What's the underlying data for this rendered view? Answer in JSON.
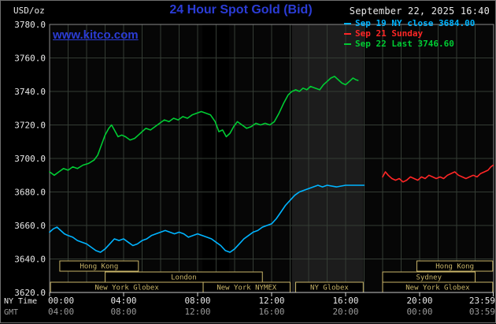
{
  "header": {
    "unit_label": "USD/oz",
    "title": "24 Hour Spot Gold (Bid)",
    "datetime": "September 22, 2025 16:40",
    "watermark": "www.kitco.com"
  },
  "colors": {
    "title": "#2b3cd6",
    "watermark": "#2b3cd6",
    "datetime": "#e8e8e8",
    "axis_text": "#e8e8e8",
    "gmt_text": "#9a9a9a",
    "grid": "#343c34",
    "plot_border": "#8a8a8a",
    "bottom_axis": "#c8c8c8",
    "tick": "#dddddd",
    "plot_bg": "#060606",
    "session": "#c9b569",
    "series_sep19": "#00b4ff",
    "series_sep21": "#ff2626",
    "series_sep22": "#00cc33"
  },
  "legend": [
    {
      "label": "Sep 19 NY close 3684.00",
      "color": "#00b4ff"
    },
    {
      "label": "Sep 21 Sunday",
      "color": "#ff2626"
    },
    {
      "label": "Sep 22 Last 3746.60",
      "color": "#00cc33"
    }
  ],
  "axes": {
    "ny_time_label": "NY Time",
    "gmt_label": "GMT",
    "y_ticks": [
      {
        "v": 3780,
        "label": "3780.0"
      },
      {
        "v": 3760,
        "label": "3760.0"
      },
      {
        "v": 3740,
        "label": "3740.0"
      },
      {
        "v": 3720,
        "label": "3720.0"
      },
      {
        "v": 3700,
        "label": "3700.0"
      },
      {
        "v": 3680,
        "label": "3680.0"
      },
      {
        "v": 3660,
        "label": "3660.0"
      },
      {
        "v": 3640,
        "label": "3640.0"
      },
      {
        "v": 3620,
        "label": "3620.0"
      }
    ],
    "x_ticks": [
      {
        "h": 0,
        "ny": "00:00",
        "gmt": "04:00"
      },
      {
        "h": 4,
        "ny": "04:00",
        "gmt": "08:00"
      },
      {
        "h": 8,
        "ny": "08:00",
        "gmt": "12:00"
      },
      {
        "h": 12,
        "ny": "12:00",
        "gmt": "16:00"
      },
      {
        "h": 16,
        "ny": "16:00",
        "gmt": "20:00"
      },
      {
        "h": 20,
        "ny": "20:00",
        "gmt": "00:00"
      },
      {
        "h": 23.983,
        "ny": "23:59",
        "gmt": "03:59"
      }
    ]
  },
  "chart_data": {
    "type": "line",
    "title": "24 Hour Spot Gold (Bid)",
    "ylabel": "USD/oz",
    "x_unit": "NY time (hours)",
    "xlim": [
      0,
      24
    ],
    "ylim": [
      3620,
      3780
    ],
    "grid": true,
    "x_grid_step_hours": 1,
    "y_grid_step": 20,
    "bands": [
      {
        "start": 8.25,
        "end": 9.7,
        "color": "#000000"
      },
      {
        "start": 13.1,
        "end": 16.95,
        "color": "#1c1c1c"
      }
    ],
    "series": [
      {
        "name": "Sep 19 NY close",
        "close": 3684.0,
        "color": "#00b4ff",
        "points": [
          [
            0,
            3656
          ],
          [
            0.2,
            3658
          ],
          [
            0.4,
            3659
          ],
          [
            0.6,
            3657
          ],
          [
            0.8,
            3655
          ],
          [
            1,
            3654
          ],
          [
            1.25,
            3653
          ],
          [
            1.5,
            3651
          ],
          [
            1.75,
            3650
          ],
          [
            2,
            3649
          ],
          [
            2.25,
            3647
          ],
          [
            2.5,
            3645
          ],
          [
            2.75,
            3644
          ],
          [
            3,
            3646
          ],
          [
            3.25,
            3649
          ],
          [
            3.5,
            3652
          ],
          [
            3.75,
            3651
          ],
          [
            4,
            3652
          ],
          [
            4.25,
            3650
          ],
          [
            4.5,
            3648
          ],
          [
            4.75,
            3649
          ],
          [
            5,
            3651
          ],
          [
            5.25,
            3652
          ],
          [
            5.5,
            3654
          ],
          [
            5.75,
            3655
          ],
          [
            6,
            3656
          ],
          [
            6.25,
            3657
          ],
          [
            6.5,
            3656
          ],
          [
            6.75,
            3655
          ],
          [
            7,
            3656
          ],
          [
            7.25,
            3655
          ],
          [
            7.5,
            3653
          ],
          [
            7.75,
            3654
          ],
          [
            8,
            3655
          ],
          [
            8.25,
            3654
          ],
          [
            8.5,
            3653
          ],
          [
            8.75,
            3652
          ],
          [
            9,
            3650
          ],
          [
            9.25,
            3648
          ],
          [
            9.5,
            3645
          ],
          [
            9.75,
            3644
          ],
          [
            10,
            3646
          ],
          [
            10.25,
            3649
          ],
          [
            10.5,
            3652
          ],
          [
            10.75,
            3654
          ],
          [
            11,
            3656
          ],
          [
            11.25,
            3657
          ],
          [
            11.5,
            3659
          ],
          [
            11.75,
            3660
          ],
          [
            12,
            3661
          ],
          [
            12.25,
            3664
          ],
          [
            12.5,
            3668
          ],
          [
            12.75,
            3672
          ],
          [
            13,
            3675
          ],
          [
            13.25,
            3678
          ],
          [
            13.5,
            3680
          ],
          [
            13.75,
            3681
          ],
          [
            14,
            3682
          ],
          [
            14.25,
            3683
          ],
          [
            14.5,
            3684
          ],
          [
            14.75,
            3683
          ],
          [
            15,
            3684
          ],
          [
            15.5,
            3683
          ],
          [
            16,
            3684
          ],
          [
            16.5,
            3684
          ],
          [
            17,
            3684
          ]
        ]
      },
      {
        "name": "Sep 21 Sunday",
        "color": "#ff2626",
        "points": [
          [
            18,
            3689
          ],
          [
            18.15,
            3692
          ],
          [
            18.3,
            3690
          ],
          [
            18.5,
            3688
          ],
          [
            18.7,
            3687
          ],
          [
            18.9,
            3688
          ],
          [
            19.1,
            3686
          ],
          [
            19.3,
            3687
          ],
          [
            19.5,
            3689
          ],
          [
            19.7,
            3688
          ],
          [
            19.9,
            3687
          ],
          [
            20.1,
            3689
          ],
          [
            20.3,
            3688
          ],
          [
            20.5,
            3690
          ],
          [
            20.7,
            3689
          ],
          [
            20.9,
            3688
          ],
          [
            21.1,
            3689
          ],
          [
            21.3,
            3688
          ],
          [
            21.5,
            3690
          ],
          [
            21.7,
            3691
          ],
          [
            21.9,
            3692
          ],
          [
            22.1,
            3690
          ],
          [
            22.3,
            3689
          ],
          [
            22.5,
            3688
          ],
          [
            22.7,
            3689
          ],
          [
            22.9,
            3690
          ],
          [
            23.1,
            3689
          ],
          [
            23.3,
            3691
          ],
          [
            23.5,
            3692
          ],
          [
            23.7,
            3693
          ],
          [
            23.85,
            3695
          ],
          [
            23.98,
            3696
          ]
        ]
      },
      {
        "name": "Sep 22 Last",
        "last": 3746.6,
        "color": "#00cc33",
        "points": [
          [
            0,
            3692
          ],
          [
            0.25,
            3690
          ],
          [
            0.5,
            3692
          ],
          [
            0.75,
            3694
          ],
          [
            1,
            3693
          ],
          [
            1.25,
            3695
          ],
          [
            1.5,
            3694
          ],
          [
            1.8,
            3696
          ],
          [
            2.1,
            3697
          ],
          [
            2.4,
            3699
          ],
          [
            2.6,
            3702
          ],
          [
            2.8,
            3708
          ],
          [
            3,
            3714
          ],
          [
            3.2,
            3718
          ],
          [
            3.35,
            3720
          ],
          [
            3.5,
            3717
          ],
          [
            3.7,
            3713
          ],
          [
            3.9,
            3714
          ],
          [
            4.1,
            3713
          ],
          [
            4.35,
            3711
          ],
          [
            4.6,
            3712
          ],
          [
            4.8,
            3714
          ],
          [
            5,
            3716
          ],
          [
            5.2,
            3718
          ],
          [
            5.45,
            3717
          ],
          [
            5.7,
            3719
          ],
          [
            5.95,
            3721
          ],
          [
            6.2,
            3723
          ],
          [
            6.45,
            3722
          ],
          [
            6.7,
            3724
          ],
          [
            6.95,
            3723
          ],
          [
            7.2,
            3725
          ],
          [
            7.45,
            3724
          ],
          [
            7.7,
            3726
          ],
          [
            7.95,
            3727
          ],
          [
            8.2,
            3728
          ],
          [
            8.45,
            3727
          ],
          [
            8.7,
            3726
          ],
          [
            8.95,
            3722
          ],
          [
            9.15,
            3716
          ],
          [
            9.35,
            3717
          ],
          [
            9.55,
            3713
          ],
          [
            9.75,
            3715
          ],
          [
            9.95,
            3719
          ],
          [
            10.15,
            3722
          ],
          [
            10.4,
            3720
          ],
          [
            10.65,
            3718
          ],
          [
            10.9,
            3719
          ],
          [
            11.15,
            3721
          ],
          [
            11.4,
            3720
          ],
          [
            11.65,
            3721
          ],
          [
            11.9,
            3720
          ],
          [
            12.15,
            3722
          ],
          [
            12.4,
            3727
          ],
          [
            12.65,
            3733
          ],
          [
            12.9,
            3738
          ],
          [
            13.1,
            3740
          ],
          [
            13.3,
            3741
          ],
          [
            13.5,
            3740
          ],
          [
            13.7,
            3742
          ],
          [
            13.9,
            3741
          ],
          [
            14.1,
            3743
          ],
          [
            14.35,
            3742
          ],
          [
            14.6,
            3741
          ],
          [
            14.8,
            3744
          ],
          [
            15,
            3746
          ],
          [
            15.2,
            3748
          ],
          [
            15.4,
            3749
          ],
          [
            15.6,
            3747
          ],
          [
            15.8,
            3745
          ],
          [
            16,
            3744
          ],
          [
            16.2,
            3746
          ],
          [
            16.4,
            3748
          ],
          [
            16.55,
            3747
          ],
          [
            16.67,
            3746.6
          ]
        ]
      }
    ],
    "sessions": [
      {
        "label": "Hong Kong",
        "row": 0,
        "start": 0.55,
        "end": 4.8
      },
      {
        "label": "Hong Kong",
        "row": 0,
        "start": 19.85,
        "end": 23.95
      },
      {
        "label": "London",
        "row": 1,
        "start": 3.0,
        "end": 11.5
      },
      {
        "label": "Sydney",
        "row": 1,
        "start": 18.0,
        "end": 23.0
      },
      {
        "label": "New York Globex",
        "row": 2,
        "start": 0.05,
        "end": 8.3
      },
      {
        "label": "New York NYMEX",
        "row": 2,
        "start": 8.3,
        "end": 13.0
      },
      {
        "label": "NY Globex",
        "row": 2,
        "start": 13.3,
        "end": 16.95
      },
      {
        "label": "New York Globex",
        "row": 2,
        "start": 18.0,
        "end": 23.95
      }
    ]
  }
}
